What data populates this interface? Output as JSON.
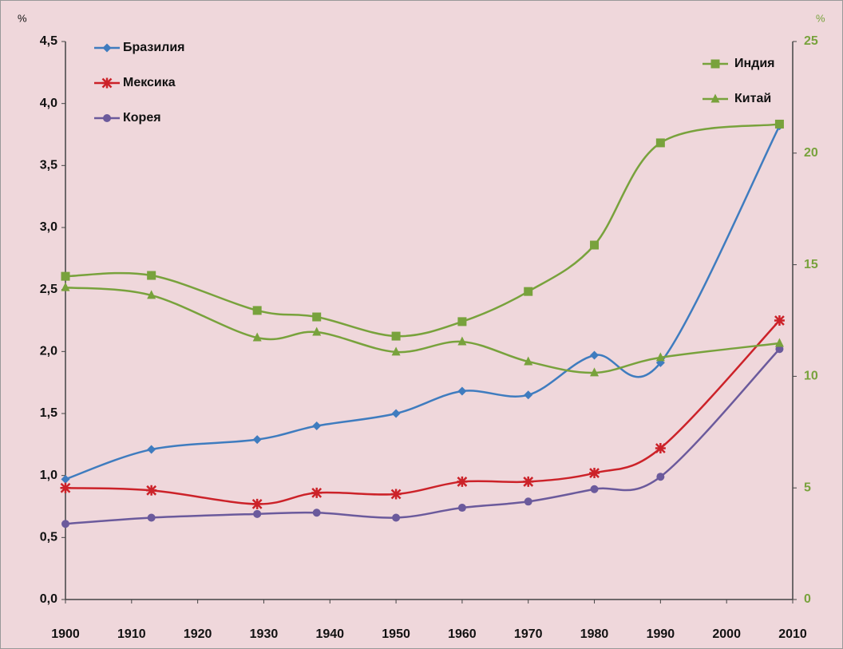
{
  "chart_data": {
    "type": "line",
    "ylabel": "%",
    "y2label": "%",
    "x": [
      1900,
      1913,
      1929,
      1938,
      1950,
      1960,
      1970,
      1980,
      1990,
      2008
    ],
    "xlim": [
      1900,
      2010
    ],
    "xticks": [
      1900,
      1910,
      1920,
      1930,
      1940,
      1950,
      1960,
      1970,
      1980,
      1990,
      2000,
      2010
    ],
    "ylim": [
      0,
      4.5
    ],
    "yticks": [
      {
        "value": 0,
        "label": "0,0"
      },
      {
        "value": 0.5,
        "label": "0,5"
      },
      {
        "value": 1,
        "label": "1,0"
      },
      {
        "value": 1.5,
        "label": "1,5"
      },
      {
        "value": 2,
        "label": "2,0"
      },
      {
        "value": 2.5,
        "label": "2,5"
      },
      {
        "value": 3,
        "label": "3,0"
      },
      {
        "value": 3.5,
        "label": "3,5"
      },
      {
        "value": 4,
        "label": "4,0"
      },
      {
        "value": 4.5,
        "label": "4,5"
      }
    ],
    "y2lim": [
      0,
      25
    ],
    "y2ticks": [
      0,
      5,
      10,
      15,
      20,
      25
    ],
    "series": [
      {
        "name": "Бразилия",
        "color": "#3f7cbf",
        "marker": "diamond",
        "values": [
          0.97,
          1.21,
          1.29,
          1.4,
          1.5,
          1.68,
          1.65,
          1.97,
          1.91,
          3.82
        ]
      },
      {
        "name": "Мексика",
        "color": "#cc2229",
        "marker": "star",
        "values": [
          0.9,
          0.88,
          0.77,
          0.86,
          0.85,
          0.95,
          0.95,
          1.02,
          1.22,
          2.25
        ]
      },
      {
        "name": "Корея",
        "color": "#6b5a9c",
        "marker": "circle",
        "values": [
          0.61,
          0.66,
          0.69,
          0.7,
          0.66,
          0.74,
          0.79,
          0.89,
          0.99,
          2.02
        ]
      },
      {
        "name": "Индия",
        "color": "#78a23c",
        "marker": "square",
        "axis": "y2",
        "values": [
          14.48,
          14.52,
          12.95,
          12.66,
          11.8,
          12.45,
          13.8,
          15.88,
          20.46,
          21.3
        ]
      },
      {
        "name": "Китай",
        "color": "#78a23c",
        "marker": "triangle",
        "axis": "y2",
        "values": [
          13.98,
          13.63,
          11.73,
          11.98,
          11.09,
          11.55,
          10.66,
          10.16,
          10.84,
          11.48
        ]
      }
    ]
  }
}
